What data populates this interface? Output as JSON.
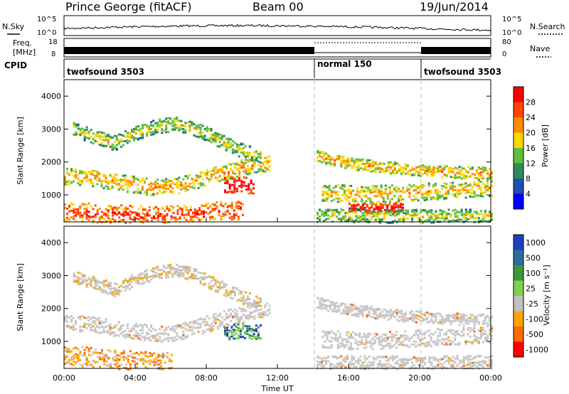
{
  "header": {
    "station": "Prince George (fitACF)",
    "beam": "Beam 00",
    "date": "19/Jun/2014"
  },
  "noise_panel": {
    "left_label": "N.Sky",
    "left_ticks": [
      "10^5",
      "10^0"
    ],
    "right_ticks": [
      "10^5",
      "10^0"
    ],
    "right_label": "N.Search"
  },
  "freq_panel": {
    "left_label_1": "Freq.",
    "left_label_2": "[MHz]",
    "left_ticks": [
      "18",
      "8"
    ],
    "right_ticks": [
      "80",
      "0"
    ],
    "right_label": "Nave"
  },
  "cpid_panel": {
    "label": "CPID",
    "segments": [
      {
        "name": "twofsound 3503",
        "start_hour": 0,
        "end_hour": 14
      },
      {
        "name": "normal 150",
        "start_hour": 14,
        "end_hour": 20
      },
      {
        "name": "twofsound 3503",
        "start_hour": 20,
        "end_hour": 24
      }
    ]
  },
  "colors": {
    "power": [
      "#0000ff",
      "#1f4fb0",
      "#2e8b57",
      "#5fbf3f",
      "#ffd700",
      "#ff8c00",
      "#ff4500",
      "#ff0000"
    ],
    "velocity": [
      "#1f3fbf",
      "#2e6b9f",
      "#3a9a3a",
      "#7fd04f",
      "#c0c0c0",
      "#ffa500",
      "#ff6a00",
      "#ff0000"
    ],
    "ground_scatter": "#c8c8c8"
  },
  "chart_data": [
    {
      "type": "heatmap",
      "name": "power",
      "ylabel": "Slant Range [km]",
      "ylim": [
        180,
        4500
      ],
      "xlim": [
        0,
        24
      ],
      "yticks": [
        "1000",
        "2000",
        "3000",
        "4000"
      ],
      "colorbar": {
        "label": "Power [dB]",
        "ticks": [
          "4",
          "8",
          "12",
          "16",
          "20",
          "24",
          "28"
        ],
        "range": [
          0,
          32
        ]
      },
      "regions": [
        {
          "t0": 0.0,
          "t1": 11.5,
          "r_center": [
            1600,
            1550,
            1450,
            1350,
            1250,
            1300,
            1500,
            1700,
            1900,
            2000
          ],
          "half_width": 250,
          "level": 14
        },
        {
          "t0": 0.5,
          "t1": 11.0,
          "r_center": [
            3000,
            2800,
            2600,
            2900,
            3100,
            3200,
            3000,
            2700,
            2400,
            2200
          ],
          "half_width": 220,
          "level": 10
        },
        {
          "t0": 0.0,
          "t1": 10.0,
          "r_center": [
            500,
            500,
            450,
            450,
            400,
            400,
            450,
            500,
            550,
            550
          ],
          "half_width": 280,
          "level": 20
        },
        {
          "t0": 9.0,
          "t1": 10.6,
          "r_center": [
            1300,
            1350,
            1300
          ],
          "half_width": 250,
          "level": 26
        },
        {
          "t0": 14.2,
          "t1": 24.0,
          "r_center": [
            2200,
            2000,
            1900,
            1800,
            1750,
            1700,
            1700
          ],
          "half_width": 180,
          "level": 14
        },
        {
          "t0": 14.5,
          "t1": 24.0,
          "r_center": [
            1100,
            1050,
            1050,
            1100,
            1150,
            1200,
            1250
          ],
          "half_width": 260,
          "level": 13
        },
        {
          "t0": 16.0,
          "t1": 19.0,
          "r_center": [
            650,
            600,
            650
          ],
          "half_width": 150,
          "level": 24
        },
        {
          "t0": 14.2,
          "t1": 24.0,
          "r_center": [
            400,
            400,
            380,
            380,
            400,
            400
          ],
          "half_width": 200,
          "level": 10
        }
      ]
    },
    {
      "type": "heatmap",
      "name": "velocity",
      "ylabel": "Slant Range [km]",
      "xlabel": "Time UT",
      "ylim": [
        180,
        4500
      ],
      "xlim": [
        0,
        24
      ],
      "xticks": [
        "00:00",
        "04:00",
        "08:00",
        "12:00",
        "16:00",
        "20:00",
        "00:00"
      ],
      "yticks": [
        "1000",
        "2000",
        "3000",
        "4000"
      ],
      "colorbar": {
        "label": "Velocity [m s⁻¹]",
        "ticks": [
          "1000",
          "500",
          "100",
          "25",
          "-25",
          "-100",
          "-500",
          "-1000"
        ]
      },
      "regions": [
        {
          "t0": 0.0,
          "t1": 11.5,
          "r_center": [
            1600,
            1550,
            1450,
            1350,
            1250,
            1300,
            1500,
            1700,
            1900,
            2000
          ],
          "half_width": 250,
          "kind": "ground"
        },
        {
          "t0": 0.5,
          "t1": 11.0,
          "r_center": [
            3000,
            2800,
            2600,
            2900,
            3100,
            3200,
            3000,
            2700,
            2400,
            2200
          ],
          "half_width": 200,
          "kind": "mixed"
        },
        {
          "t0": 0.0,
          "t1": 6.0,
          "r_center": [
            600,
            550,
            500,
            450,
            400,
            400
          ],
          "half_width": 300,
          "kind": "negative"
        },
        {
          "t0": 9.0,
          "t1": 11.0,
          "r_center": [
            1300,
            1350,
            1300
          ],
          "half_width": 220,
          "kind": "positive"
        },
        {
          "t0": 14.2,
          "t1": 24.0,
          "r_center": [
            2200,
            2000,
            1900,
            1800,
            1750,
            1700,
            1700
          ],
          "half_width": 170,
          "kind": "ground"
        },
        {
          "t0": 14.5,
          "t1": 24.0,
          "r_center": [
            1100,
            1050,
            1050,
            1100,
            1150,
            1200,
            1250
          ],
          "half_width": 260,
          "kind": "ground"
        },
        {
          "t0": 14.2,
          "t1": 24.0,
          "r_center": [
            400,
            400,
            380,
            380,
            400,
            400
          ],
          "half_width": 200,
          "kind": "ground"
        }
      ]
    }
  ]
}
